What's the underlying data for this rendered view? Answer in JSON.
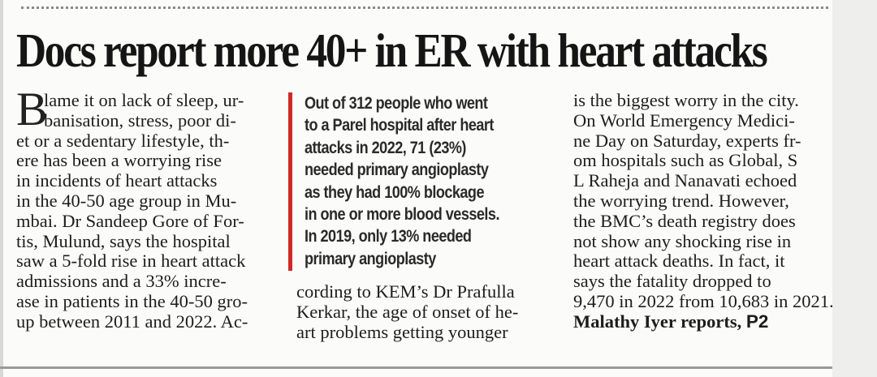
{
  "headline": "Docs report more 40+ in ER with heart attacks",
  "column1": {
    "drop_cap": "B",
    "indent_lines": [
      "lame it on lack of sleep, ur-",
      "banisation, stress, poor di-"
    ],
    "lines": [
      "et or a sedentary lifestyle, th-",
      "ere has been a worrying rise",
      "in incidents of heart attacks",
      "in the 40-50 age group in Mu-",
      "mbai. Dr Sandeep Gore of For-",
      "tis, Mulund, says the hospital",
      "saw a 5-fold rise in heart attack",
      "admissions and a 33% incre-",
      "ase in patients in the 40-50 gro-",
      "up between 2011 and 2022. Ac-"
    ]
  },
  "pull_quote": {
    "lines": [
      "Out of 312 people who went",
      "to a Parel hospital after heart",
      "attacks in 2022, 71 (23%)",
      "needed primary angioplasty",
      "as they had 100% blockage",
      "in one or more blood vessels.",
      "In 2019, only 13% needed",
      "primary angioplasty"
    ]
  },
  "column2": {
    "lines": [
      "cording to KEM’s Dr Prafulla",
      "Kerkar, the age of onset of he-",
      "art problems getting younger"
    ]
  },
  "column3": {
    "lines": [
      "is the biggest worry in the city.",
      "On World Emergency Medici-",
      "ne Day on Saturday, experts fr-",
      "om hospitals such as Global, S",
      "L Raheja and Nanavati echoed",
      "the worrying trend. However,",
      "the BMC’s death registry does",
      "not show any shocking rise in",
      "heart attack deaths. In fact, it",
      "says the fatality dropped to",
      "9,470 in 2022 from 10,683 in 2021."
    ],
    "byline": "Malathy Iyer reports,",
    "page_ref": "P2"
  }
}
